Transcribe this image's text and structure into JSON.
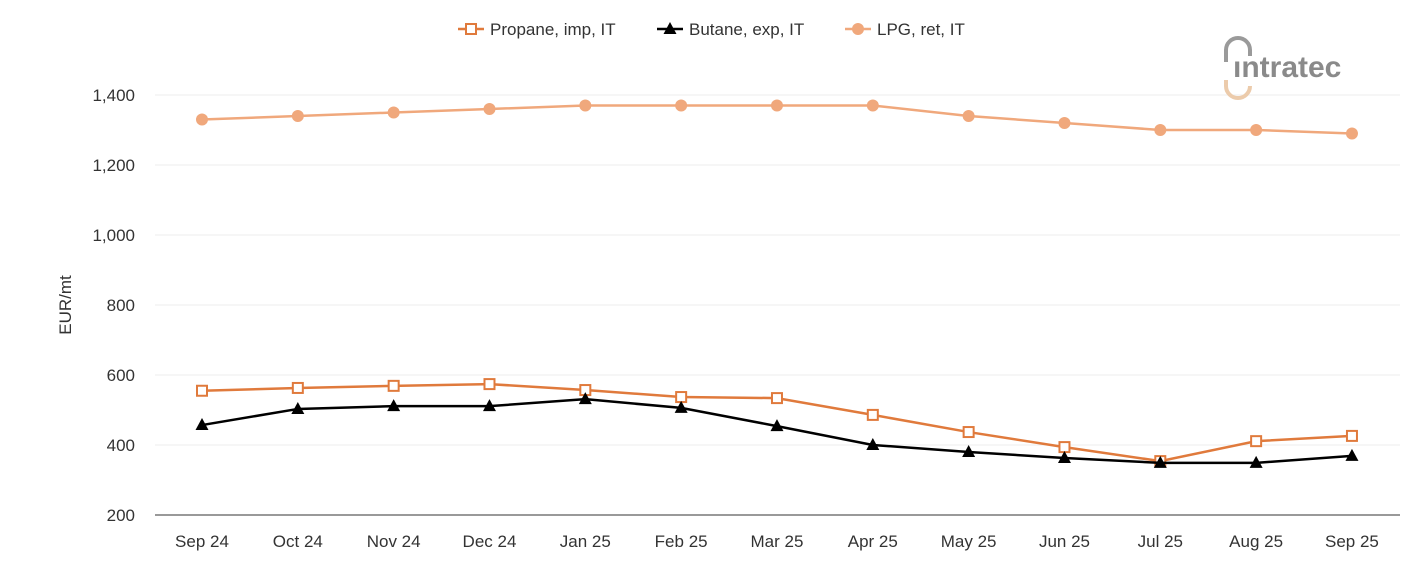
{
  "chart_data": {
    "type": "line",
    "title": "",
    "xlabel": "",
    "ylabel": "EUR/mt",
    "ylim": [
      200,
      1400
    ],
    "yticks": [
      "200",
      "400",
      "600",
      "800",
      "1,000",
      "1,200",
      "1,400"
    ],
    "grid": true,
    "legend_position": "top",
    "categories": [
      "Sep 24",
      "Oct 24",
      "Nov 24",
      "Dec 24",
      "Jan 25",
      "Feb 25",
      "Mar 25",
      "Apr 25",
      "May 25",
      "Jun 25",
      "Jul 25",
      "Aug 25",
      "Sep 25"
    ],
    "series": [
      {
        "name": "Propane, imp, IT",
        "color": "#e07a3c",
        "marker": "open-square",
        "values": [
          555,
          563,
          569,
          574,
          557,
          537,
          534,
          486,
          437,
          394,
          354,
          411,
          426
        ]
      },
      {
        "name": "Butane, exp, IT",
        "color": "#000000",
        "marker": "triangle",
        "values": [
          457,
          503,
          511,
          511,
          531,
          506,
          454,
          400,
          380,
          363,
          349,
          349,
          369
        ]
      },
      {
        "name": "LPG, ret, IT",
        "color": "#f0a87c",
        "marker": "circle",
        "values": [
          1330,
          1340,
          1350,
          1360,
          1370,
          1370,
          1370,
          1370,
          1340,
          1320,
          1300,
          1300,
          1290
        ]
      }
    ]
  },
  "logo": {
    "text": "intratec"
  }
}
